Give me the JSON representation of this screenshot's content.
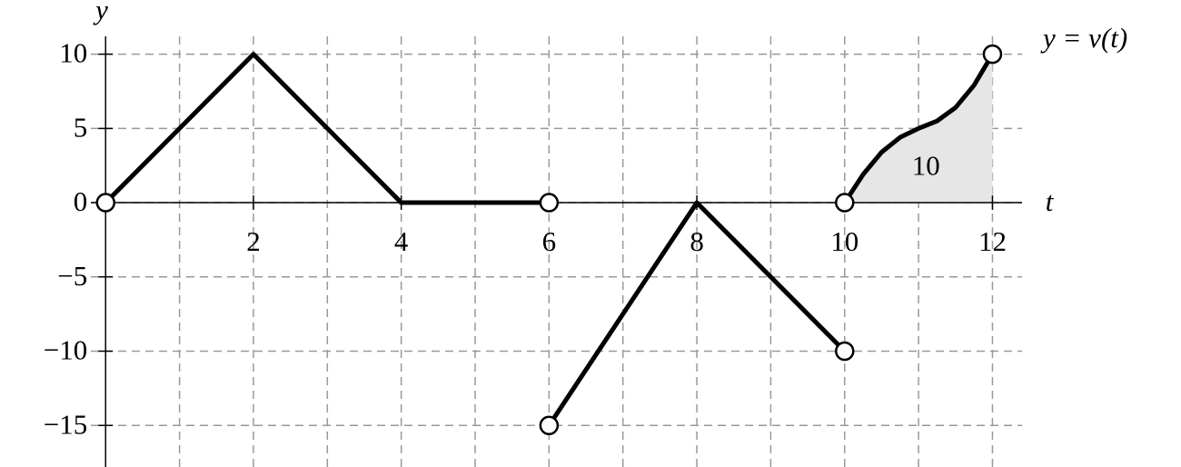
{
  "chart_data": {
    "type": "line",
    "x_label": "t",
    "y_label": "y",
    "xlim": [
      -0.2,
      12.4
    ],
    "ylim": [
      -17.8,
      11.2
    ],
    "xticks": [
      2,
      4,
      6,
      8,
      10,
      12
    ],
    "xgrid_minor": [
      1,
      3,
      5,
      7,
      9,
      11
    ],
    "yticks": [
      {
        "value": -15,
        "label": "−15"
      },
      {
        "value": -10,
        "label": "−10"
      },
      {
        "value": -5,
        "label": "−5"
      },
      0,
      5,
      10
    ],
    "grid": true,
    "series": [
      {
        "name": "y = v(t)",
        "color": "#000000",
        "x": [
          0,
          2,
          4,
          6,
          null,
          6,
          8,
          10,
          null,
          10,
          10.25,
          10.5,
          10.75,
          11,
          11.25,
          11.5,
          11.75,
          12
        ],
        "y": [
          0,
          10,
          0,
          0,
          null,
          -15,
          0,
          -10,
          null,
          0,
          1.9,
          3.4,
          4.4,
          5,
          5.5,
          6.4,
          7.9,
          10
        ]
      }
    ],
    "open_points": {
      "x": [
        0,
        6,
        6,
        10,
        10,
        12
      ],
      "y": [
        0,
        0,
        -15,
        -10,
        0,
        10
      ]
    },
    "annotations": [
      {
        "text": "10",
        "x": 11.1,
        "y": 2.3
      }
    ]
  }
}
